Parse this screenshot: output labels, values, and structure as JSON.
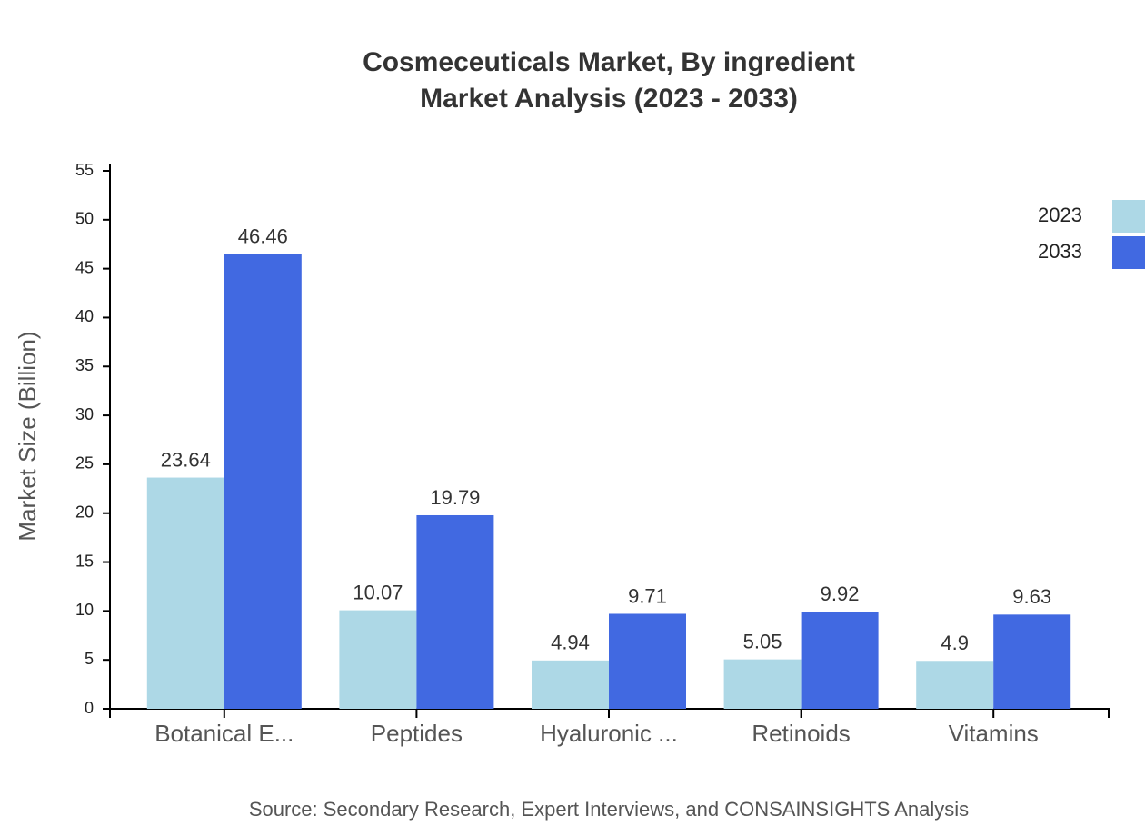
{
  "chart_data": {
    "type": "bar",
    "title": "Cosmeceuticals Market, By ingredient",
    "subtitle": "Market Analysis (2023 - 2033)",
    "y_label": "Market Size (Billion)",
    "source": "Source: Secondary Research, Expert Interviews, and CONSAINSIGHTS Analysis",
    "categories": [
      "Botanical E...",
      "Peptides",
      "Hyaluronic ...",
      "Retinoids",
      "Vitamins"
    ],
    "series": [
      {
        "name": "2023",
        "color": "#add8e6",
        "values": [
          23.64,
          10.07,
          4.94,
          5.05,
          4.9
        ]
      },
      {
        "name": "2033",
        "color": "#4169e1",
        "values": [
          46.46,
          19.79,
          9.71,
          9.92,
          9.63
        ]
      }
    ],
    "ylim": [
      0,
      55
    ],
    "yticks": [
      0,
      5,
      10,
      15,
      20,
      25,
      30,
      35,
      40,
      45,
      50,
      55
    ],
    "legend": "top-right",
    "grid": false
  }
}
